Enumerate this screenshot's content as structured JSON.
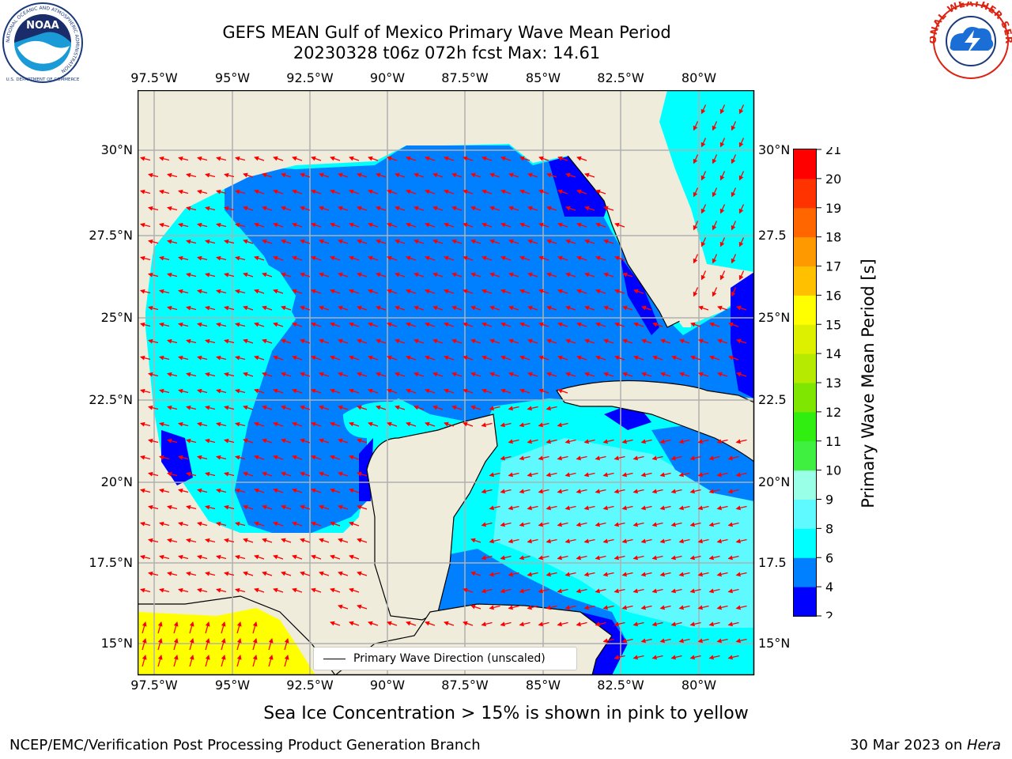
{
  "title": {
    "line1": "GEFS MEAN Gulf of Mexico Primary Wave Mean Period",
    "line2": "20230328 t06z 072h fcst   Max: 14.61"
  },
  "logos": {
    "left_text_top": "NATIONAL OCEANIC AND ATMOSPHERIC ADMINISTRATION",
    "left_text_bottom": "U.S. DEPARTMENT OF COMMERCE",
    "left_center": "NOAA",
    "right_text": "NATIONAL WEATHER SERVICE"
  },
  "map": {
    "lon_ticks": [
      "97.5°W",
      "95°W",
      "92.5°W",
      "90°W",
      "87.5°W",
      "85°W",
      "82.5°W",
      "80°W"
    ],
    "lat_ticks_left": [
      "30°N",
      "27.5°N",
      "25°N",
      "22.5°N",
      "20°N",
      "17.5°N",
      "15°N"
    ],
    "lat_ticks_right": [
      "30°N",
      "27.5",
      "25°N",
      "22.5",
      "20°N",
      "17.5",
      "15°N"
    ],
    "legend_label": "Primary Wave Direction (unscaled)",
    "colors": {
      "land": "#efecdc",
      "coast": "#000000",
      "grid": "#b0b0b0",
      "arrow": "#ff0000"
    }
  },
  "colorbar": {
    "label": "Primary Wave Mean Period [s]",
    "ticks": [
      "2",
      "4",
      "6",
      "8",
      "9",
      "10",
      "11",
      "12",
      "13",
      "14",
      "15",
      "16",
      "17",
      "18",
      "19",
      "20",
      "21"
    ],
    "colors": [
      "#0000ff",
      "#0080ff",
      "#00ffff",
      "#5ffaff",
      "#99ffe6",
      "#40f040",
      "#30ee10",
      "#7ee600",
      "#b6ea00",
      "#dcf000",
      "#ffff00",
      "#ffc000",
      "#ff9900",
      "#ff6600",
      "#ff3300",
      "#ff0000"
    ]
  },
  "caption": "Sea Ice Concentration > 15% is shown in pink to yellow",
  "footer": {
    "left": "NCEP/EMC/Verification Post Processing Product Generation Branch",
    "right_prefix": "30 Mar 2023 on ",
    "right_host": "Hera"
  }
}
